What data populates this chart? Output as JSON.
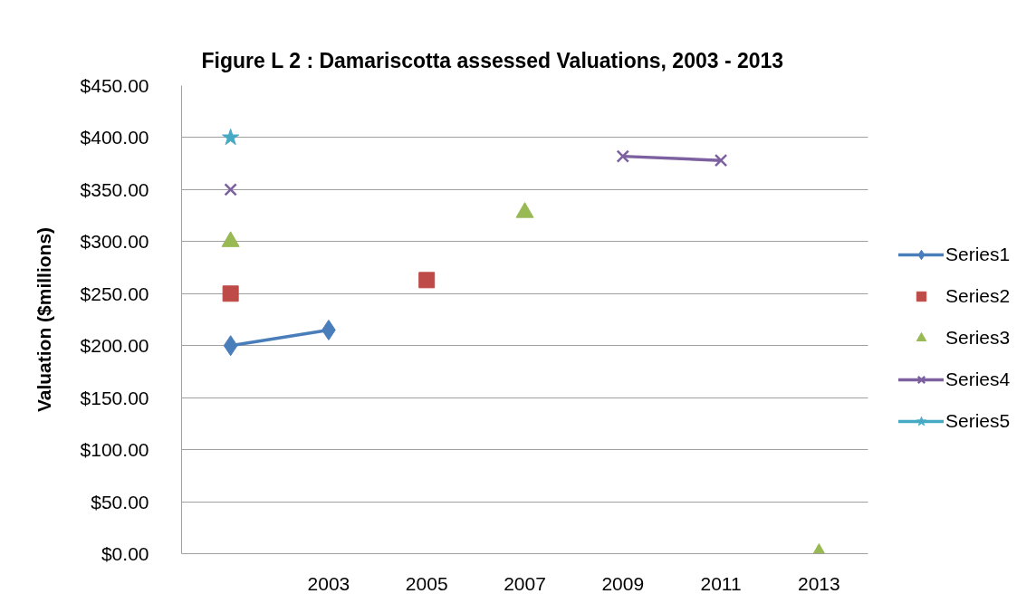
{
  "chart_data": {
    "type": "line",
    "title": "Figure L 2 : Damariscotta assessed Valuations, 2003 - 2013",
    "ylabel": "Valuation ($millions)",
    "categories": [
      null,
      "2003",
      "2005",
      "2007",
      "2009",
      "2011",
      "2013"
    ],
    "series": [
      {
        "name": "Series1",
        "color": "#4a7ebb",
        "marker": "diamond",
        "values": [
          200,
          215,
          null,
          null,
          null,
          null,
          null
        ]
      },
      {
        "name": "Series2",
        "type": "scatter",
        "color": "#be4b48",
        "marker": "square",
        "values": [
          250,
          null,
          263,
          null,
          null,
          null,
          null
        ]
      },
      {
        "name": "Series3",
        "type": "scatter",
        "color": "#98b954",
        "marker": "triangle",
        "values": [
          300,
          null,
          null,
          328,
          null,
          null,
          0
        ]
      },
      {
        "name": "Series4",
        "color": "#7d60a0",
        "marker": "cross",
        "values": [
          350,
          null,
          null,
          null,
          382,
          378,
          null
        ]
      },
      {
        "name": "Series5",
        "color": "#46aac5",
        "marker": "star",
        "values": [
          400,
          null,
          null,
          null,
          null,
          null,
          null
        ]
      }
    ],
    "ylim": [
      0,
      450
    ],
    "yticks": [
      {
        "value": 0,
        "label": "$0.00"
      },
      {
        "value": 50,
        "label": "$50.00"
      },
      {
        "value": 100,
        "label": "$100.00"
      },
      {
        "value": 150,
        "label": "$150.00"
      },
      {
        "value": 200,
        "label": "$200.00"
      },
      {
        "value": 250,
        "label": "$250.00"
      },
      {
        "value": 300,
        "label": "$300.00"
      },
      {
        "value": 350,
        "label": "$350.00"
      },
      {
        "value": 400,
        "label": "$400.00"
      },
      {
        "value": 450,
        "label": "$450.00"
      }
    ],
    "grid": "y",
    "legend": "right",
    "line_style": "solid"
  }
}
